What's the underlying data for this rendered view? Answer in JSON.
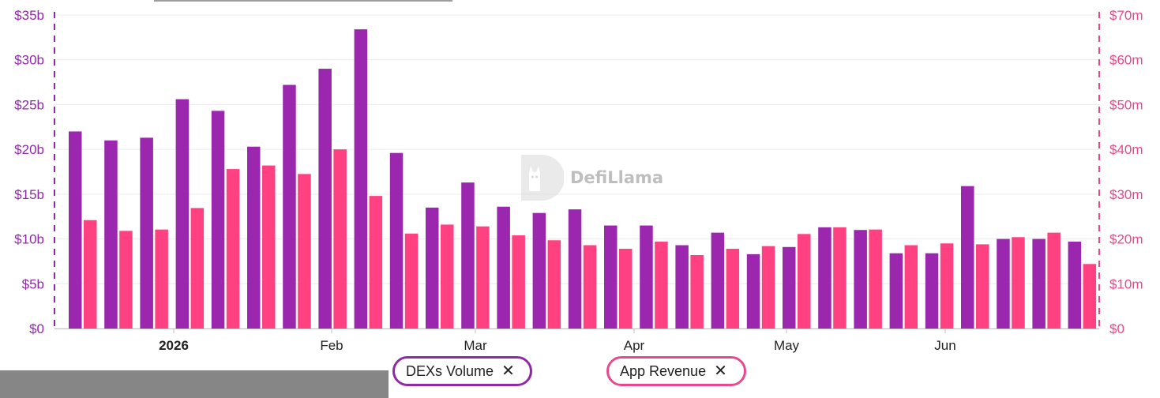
{
  "chart_data": {
    "type": "bar",
    "xtick_labels": [
      "2026",
      "Feb",
      "Mar",
      "Apr",
      "May",
      "Jun"
    ],
    "y_left": {
      "ticks": [
        "$0",
        "$5b",
        "$10b",
        "$15b",
        "$20b",
        "$25b",
        "$30b",
        "$35b"
      ],
      "range": [
        0,
        35
      ],
      "unit": "billion USD"
    },
    "y_right": {
      "ticks": [
        "$0",
        "$10m",
        "$20m",
        "$30m",
        "$40m",
        "$50m",
        "$60m",
        "$70m"
      ],
      "range": [
        0,
        70
      ],
      "unit": "million USD"
    },
    "grid": true,
    "series": [
      {
        "name": "DEXs Volume",
        "axis": "left",
        "color": "#9b27af",
        "values": [
          22.0,
          21.0,
          21.3,
          25.6,
          24.3,
          20.3,
          27.2,
          29.0,
          33.4,
          19.6,
          13.5,
          16.3,
          13.6,
          12.9,
          13.3,
          11.5,
          11.5,
          9.3,
          10.7,
          8.3,
          9.1,
          11.3,
          11.0,
          8.4,
          8.4,
          15.9,
          10.0,
          10.0,
          9.7
        ]
      },
      {
        "name": "App Revenue",
        "axis": "right",
        "color": "#ff4081",
        "values": [
          24.2,
          21.8,
          22.1,
          26.9,
          35.6,
          36.4,
          34.5,
          40.0,
          29.6,
          21.2,
          23.2,
          22.8,
          20.8,
          19.7,
          18.6,
          17.8,
          19.4,
          16.4,
          17.8,
          18.4,
          21.1,
          22.6,
          22.1,
          18.6,
          19.0,
          18.8,
          20.4,
          21.4,
          14.4
        ]
      }
    ]
  },
  "legend": [
    {
      "label": "DEXs Volume",
      "close": "✕"
    },
    {
      "label": "App Revenue",
      "close": "✕"
    }
  ],
  "watermark": {
    "text": "DefiLlama"
  },
  "colors": {
    "left_axis": "#8e2aa6",
    "right_axis": "#e8488d",
    "grid": "#ececec"
  }
}
